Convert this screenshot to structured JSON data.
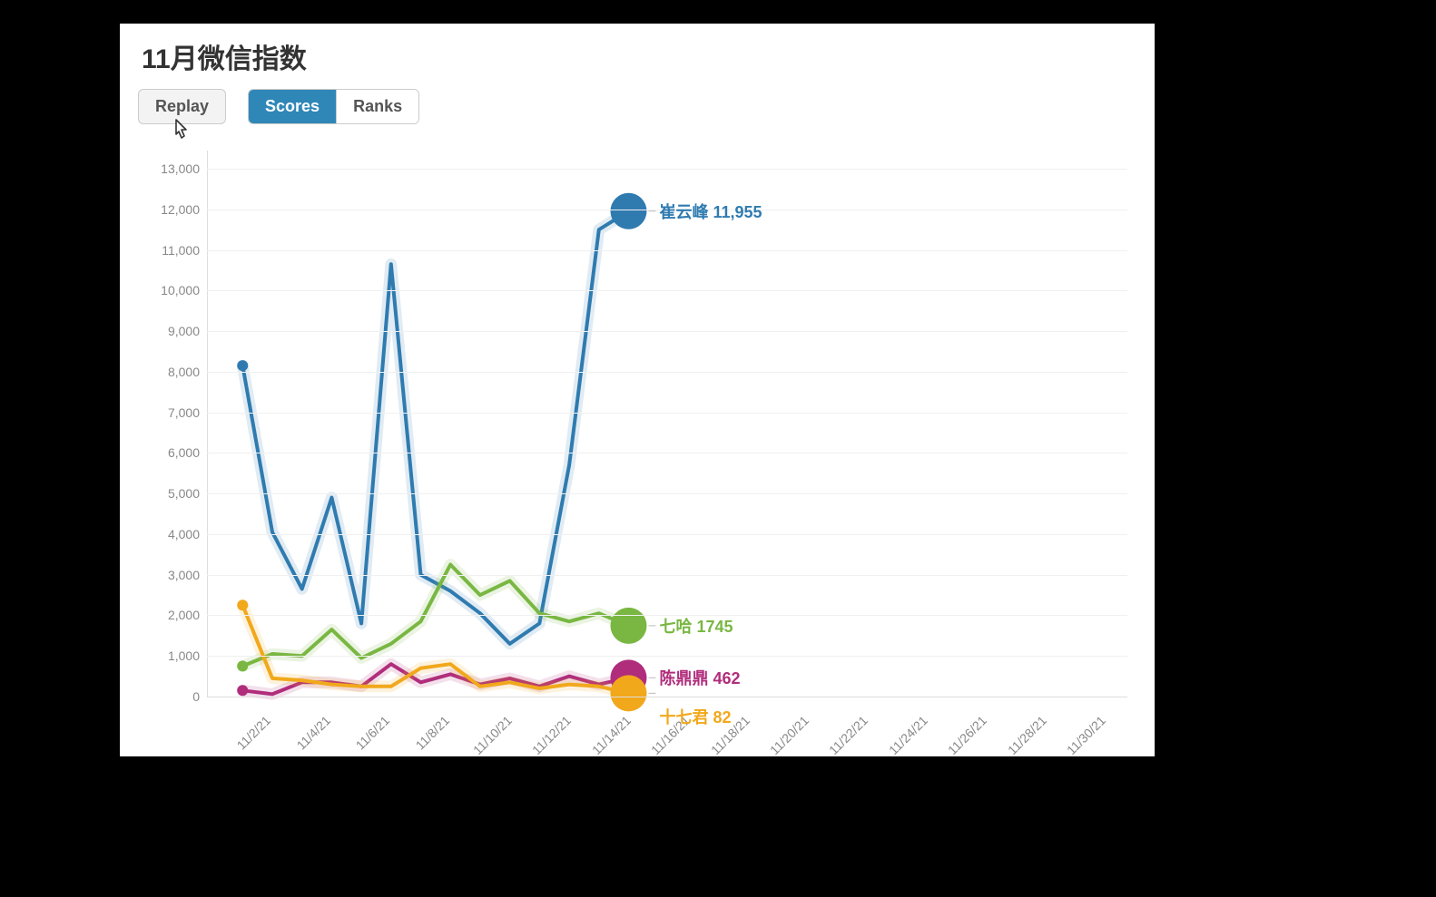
{
  "page": {
    "title": "11月微信指数"
  },
  "controls": {
    "replay_label": "Replay",
    "scores_label": "Scores",
    "ranks_label": "Ranks",
    "active_segment": "scores"
  },
  "chart": {
    "type": "line",
    "background_color": "#ffffff",
    "grid_color": "#f0f0f0",
    "axis_color": "#dddddd",
    "tick_color": "#888888",
    "title_fontsize": 30,
    "label_fontsize": 18,
    "tick_fontsize": 14,
    "line_width": 4,
    "marker_radius_start": 6,
    "marker_radius_end": 20,
    "ylim": [
      0,
      13000
    ],
    "ytick_step": 1000,
    "x_categories": [
      "11/2/21",
      "11/4/21",
      "11/6/21",
      "11/8/21",
      "11/10/21",
      "11/12/21",
      "11/14/21",
      "11/16/21",
      "11/18/21",
      "11/20/21",
      "11/22/21",
      "11/24/21",
      "11/26/21",
      "11/28/21",
      "11/30/21"
    ],
    "x_dates_all": [
      "11/2/21",
      "11/3/21",
      "11/4/21",
      "11/5/21",
      "11/6/21",
      "11/7/21",
      "11/8/21",
      "11/9/21",
      "11/10/21",
      "11/11/21",
      "11/12/21",
      "11/13/21",
      "11/14/21",
      "11/15/21"
    ],
    "series": [
      {
        "id": "cui",
        "name": "崔云峰",
        "color": "#2f7bb0",
        "values": [
          8150,
          4050,
          2650,
          4900,
          1800,
          10650,
          3000,
          2600,
          2050,
          1300,
          1800,
          5700,
          11500,
          11955
        ],
        "end_value_label": "11,955"
      },
      {
        "id": "qiha",
        "name": "七哈",
        "color": "#79b742",
        "values": [
          750,
          1050,
          1000,
          1650,
          950,
          1300,
          1850,
          3250,
          2500,
          2850,
          2050,
          1850,
          2050,
          1745
        ],
        "end_value_label": "1745"
      },
      {
        "id": "chen",
        "name": "陈鼎鼎",
        "color": "#b02d7c",
        "values": [
          150,
          60,
          350,
          350,
          250,
          800,
          350,
          550,
          300,
          450,
          250,
          500,
          300,
          462
        ],
        "end_value_label": "462"
      },
      {
        "id": "shiqi",
        "name": "十七君",
        "color": "#f1a81b",
        "values": [
          2250,
          450,
          400,
          300,
          250,
          250,
          700,
          800,
          250,
          350,
          200,
          300,
          250,
          82
        ],
        "end_value_label": "82"
      }
    ],
    "end_label_offsets_y": {
      "cui": 0,
      "qiha": 0,
      "chen": 0,
      "shiqi": 26
    }
  }
}
